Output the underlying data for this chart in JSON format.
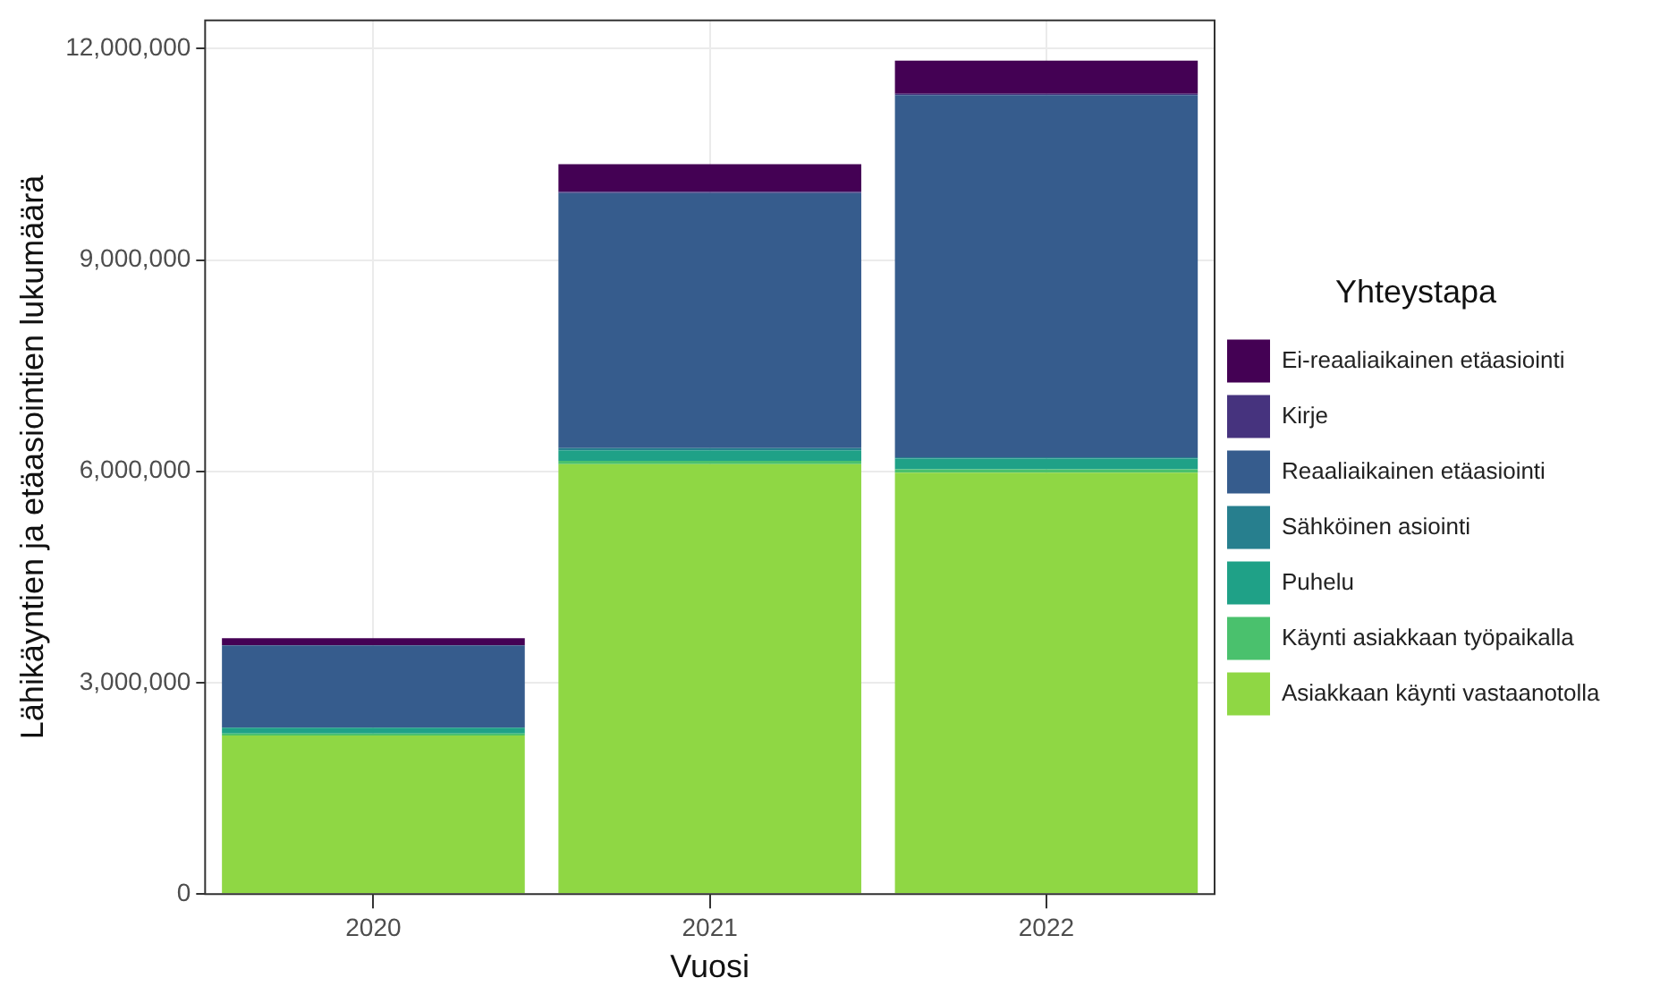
{
  "chart_data": {
    "type": "bar",
    "stacked": true,
    "xlabel": "Vuosi",
    "ylabel": "Lähikäyntien ja etäasiointien lukumäärä",
    "legend_title": "Yhteystapa",
    "legend": "right",
    "grid": true,
    "categories": [
      "2020",
      "2021",
      "2022"
    ],
    "ylim": [
      0,
      12400000
    ],
    "yticks": [
      {
        "value": 0,
        "label": "0"
      },
      {
        "value": 3000000,
        "label": "3,000,000"
      },
      {
        "value": 6000000,
        "label": "6,000,000"
      },
      {
        "value": 9000000,
        "label": "9,000,000"
      },
      {
        "value": 12000000,
        "label": "12,000,000"
      }
    ],
    "series": [
      {
        "name": "Asiakkaan käynti vastaanotolla",
        "color": "#8fd744",
        "values": [
          2250000,
          6100000,
          5980000
        ]
      },
      {
        "name": "Käynti asiakkaan työpaikalla",
        "color": "#4ac16d",
        "values": [
          30000,
          50000,
          50000
        ]
      },
      {
        "name": "Puhelu",
        "color": "#1fa187",
        "values": [
          80000,
          150000,
          150000
        ]
      },
      {
        "name": "Sähköinen asiointi",
        "color": "#277f8e",
        "values": [
          null,
          30000,
          20000
        ]
      },
      {
        "name": "Reaaliaikainen etäasiointi",
        "color": "#365c8d",
        "values": [
          1170000,
          3620000,
          5140000
        ]
      },
      {
        "name": "Kirje",
        "color": "#46337e",
        "values": [
          null,
          20000,
          20000
        ]
      },
      {
        "name": "Ei-reaaliaikainen etäasiointi",
        "color": "#440154",
        "values": [
          100000,
          390000,
          470000
        ]
      }
    ]
  }
}
